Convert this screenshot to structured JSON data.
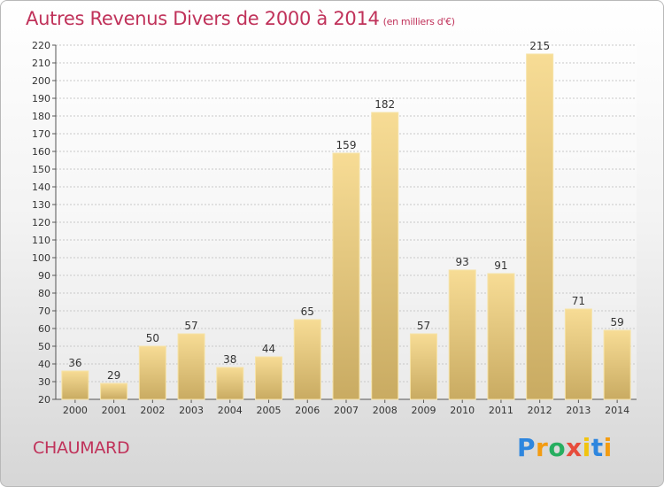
{
  "header": {
    "title": "Autres Revenus Divers de 2000 à 2014",
    "subtitle": "(en milliers d'€)"
  },
  "footer": {
    "commune": "CHAUMARD",
    "logo_letters": [
      "P",
      "r",
      "o",
      "x",
      "i",
      "t",
      "i"
    ],
    "logo_colors": [
      "#2e86de",
      "#f39c12",
      "#27ae60",
      "#e74c3c",
      "#f1c40f",
      "#2e86de",
      "#f39c12"
    ]
  },
  "chart_data": {
    "type": "bar",
    "categories": [
      "2000",
      "2001",
      "2002",
      "2003",
      "2004",
      "2005",
      "2006",
      "2007",
      "2008",
      "2009",
      "2010",
      "2011",
      "2012",
      "2013",
      "2014"
    ],
    "values": [
      36,
      29,
      50,
      57,
      38,
      44,
      65,
      159,
      182,
      57,
      93,
      91,
      215,
      71,
      59
    ],
    "title": "Autres Revenus Divers de 2000 à 2014",
    "ylim": [
      20,
      220
    ],
    "ytick_step": 10,
    "grid": true,
    "bar_color": "#e8c97a"
  }
}
